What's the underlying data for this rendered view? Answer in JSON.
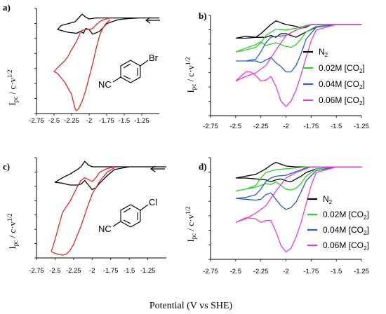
{
  "figure": {
    "xlabel": "Potential (V vs SHE)",
    "ylabel_main": "I",
    "ylabel_sub": "pc",
    "ylabel_rest": " / c·v",
    "ylabel_sup": "1/2"
  },
  "colors": {
    "n2": "#000000",
    "red": "#e0282a",
    "green": "#2ed12a",
    "blue": "#2a5cc8",
    "magenta": "#ee3bd8"
  },
  "molecules": {
    "a_substituent": "Br",
    "c_substituent": "Cl",
    "nitrile": "NC"
  },
  "chart_data": [
    {
      "panel": "a)",
      "type": "line",
      "x_ticks": [
        "-2.75",
        "-2.5",
        "-2.25",
        "-2",
        "-1.75",
        "-1.5",
        "-1.25"
      ],
      "xlim": [
        -2.75,
        -1.0
      ],
      "ylim": [
        -1.0,
        0.1
      ],
      "arrow": "scan direction toward negative potential",
      "series": [
        {
          "color_key": "n2",
          "x": [
            -1.0,
            -1.3,
            -1.5,
            -1.6,
            -1.75,
            -1.85,
            -1.95,
            -2.0,
            -2.05,
            -2.08,
            -2.12,
            -2.18,
            -2.3,
            -2.4,
            -2.45,
            -2.4,
            -2.3,
            -2.2,
            -2.15,
            -2.1,
            -2.05,
            -2.0,
            -1.9,
            -1.8,
            -1.6,
            -1.3,
            -1.0
          ],
          "y": [
            0.0,
            0.0,
            -0.01,
            -0.02,
            -0.06,
            -0.14,
            -0.17,
            -0.12,
            -0.11,
            -0.16,
            -0.14,
            -0.16,
            -0.15,
            -0.13,
            -0.12,
            -0.08,
            -0.06,
            -0.04,
            0.0,
            0.04,
            0.01,
            -0.01,
            0.0,
            0.0,
            0.0,
            0.0,
            0.0
          ]
        },
        {
          "color_key": "red",
          "x": [
            -1.7,
            -1.75,
            -1.8,
            -1.85,
            -1.9,
            -1.95,
            -2.0,
            -2.05,
            -2.1,
            -2.15,
            -2.18,
            -2.2,
            -2.25,
            -2.35,
            -2.45,
            -2.5,
            -2.45,
            -2.35,
            -2.3,
            -2.25,
            -2.2,
            -2.15,
            -2.12,
            -2.1,
            -2.05,
            -2.0,
            -1.95,
            -1.9,
            -1.85,
            -1.8,
            -1.7
          ],
          "y": [
            -0.02,
            -0.05,
            -0.1,
            -0.18,
            -0.32,
            -0.48,
            -0.62,
            -0.76,
            -0.87,
            -0.95,
            -0.97,
            -0.95,
            -0.8,
            -0.67,
            -0.58,
            -0.56,
            -0.52,
            -0.45,
            -0.4,
            -0.33,
            -0.27,
            -0.2,
            -0.14,
            -0.13,
            -0.12,
            -0.12,
            -0.11,
            -0.07,
            -0.04,
            -0.02,
            0.0
          ]
        }
      ]
    },
    {
      "panel": "b)",
      "type": "line",
      "x_ticks": [
        "-2.75",
        "-2.5",
        "-2.25",
        "-2",
        "-1.75",
        "-1.5",
        "-1.25"
      ],
      "xlim": [
        -2.75,
        -1.25
      ],
      "ylim": [
        -1.0,
        0.1
      ],
      "legend": [
        "N2",
        "0.02M [CO2]",
        "0.04M [CO2]",
        "0.06M [CO2]"
      ],
      "series": [
        {
          "name": "N2",
          "color_key": "n2",
          "x": [
            -2.5,
            -2.4,
            -2.3,
            -2.25,
            -2.2,
            -2.15,
            -2.1,
            -2.0,
            -1.9,
            -1.85,
            -1.8,
            -1.75,
            -1.7,
            -1.6,
            -1.5,
            -1.25,
            -1.5,
            -1.7,
            -1.8,
            -1.9,
            -2.0,
            -2.05,
            -2.1,
            -2.15,
            -2.2,
            -2.3,
            -2.4,
            -2.5
          ],
          "y": [
            -0.15,
            -0.15,
            -0.14,
            -0.1,
            -0.05,
            0.0,
            0.04,
            0.0,
            -0.02,
            -0.04,
            -0.03,
            0.0,
            0.0,
            0.0,
            0.0,
            0.0,
            0.0,
            -0.03,
            -0.08,
            -0.14,
            -0.1,
            -0.1,
            -0.14,
            -0.12,
            -0.14,
            -0.14,
            -0.13,
            -0.15
          ]
        },
        {
          "name": "0.02M [CO2]",
          "color_key": "green",
          "x": [
            -2.5,
            -2.4,
            -2.3,
            -2.25,
            -2.2,
            -2.1,
            -2.0,
            -1.9,
            -1.8,
            -1.75,
            -1.7,
            -1.6,
            -1.4,
            -1.25,
            -1.5,
            -1.7,
            -1.8,
            -1.85,
            -1.9,
            -1.95,
            -2.0,
            -2.1,
            -2.2,
            -2.25,
            -2.3,
            -2.4,
            -2.5
          ],
          "y": [
            -0.3,
            -0.28,
            -0.25,
            -0.2,
            -0.12,
            -0.05,
            -0.06,
            -0.04,
            -0.01,
            0.0,
            0.0,
            0.0,
            0.0,
            0.0,
            0.0,
            -0.02,
            -0.08,
            -0.16,
            -0.22,
            -0.25,
            -0.24,
            -0.2,
            -0.23,
            -0.19,
            -0.22,
            -0.26,
            -0.3
          ]
        },
        {
          "name": "0.04M [CO2]",
          "color_key": "blue",
          "x": [
            -2.5,
            -2.4,
            -2.3,
            -2.25,
            -2.2,
            -2.15,
            -2.1,
            -2.0,
            -1.9,
            -1.8,
            -1.75,
            -1.6,
            -1.4,
            -1.25,
            -1.5,
            -1.7,
            -1.8,
            -1.85,
            -1.9,
            -1.95,
            -2.0,
            -2.05,
            -2.1,
            -2.15,
            -2.2,
            -2.25,
            -2.3,
            -2.4,
            -2.5
          ],
          "y": [
            -0.4,
            -0.4,
            -0.38,
            -0.3,
            -0.2,
            -0.14,
            -0.13,
            -0.12,
            -0.06,
            -0.02,
            0.0,
            0.0,
            0.0,
            0.0,
            0.0,
            -0.03,
            -0.16,
            -0.32,
            -0.45,
            -0.52,
            -0.52,
            -0.46,
            -0.42,
            -0.36,
            -0.39,
            -0.42,
            -0.4,
            -0.4,
            -0.4
          ]
        },
        {
          "name": "0.06M [CO2]",
          "color_key": "magenta",
          "x": [
            -2.5,
            -2.4,
            -2.3,
            -2.2,
            -2.1,
            -2.0,
            -1.9,
            -1.8,
            -1.75,
            -1.6,
            -1.4,
            -1.25,
            -1.5,
            -1.7,
            -1.75,
            -1.8,
            -1.85,
            -1.9,
            -1.95,
            -2.0,
            -2.05,
            -2.1,
            -2.15,
            -2.2,
            -2.25,
            -2.3,
            -2.35,
            -2.4,
            -2.5
          ],
          "y": [
            -0.62,
            -0.57,
            -0.53,
            -0.45,
            -0.28,
            -0.12,
            -0.06,
            -0.02,
            0.0,
            0.0,
            0.0,
            0.0,
            0.0,
            -0.06,
            -0.18,
            -0.36,
            -0.55,
            -0.72,
            -0.84,
            -0.9,
            -0.84,
            -0.68,
            -0.57,
            -0.61,
            -0.62,
            -0.56,
            -0.52,
            -0.52,
            -0.62
          ]
        }
      ]
    },
    {
      "panel": "c)",
      "type": "line",
      "x_ticks": [
        "-2.75",
        "-2.5",
        "-2.25",
        "-2",
        "-1.75",
        "-1.5",
        "-1.25"
      ],
      "xlim": [
        -2.75,
        -1.0
      ],
      "ylim": [
        -1.0,
        0.1
      ],
      "arrow": "scan direction toward negative potential",
      "series": [
        {
          "color_key": "n2",
          "x": [
            -1.0,
            -1.3,
            -1.5,
            -1.7,
            -1.8,
            -1.9,
            -1.95,
            -2.0,
            -2.05,
            -2.1,
            -2.15,
            -2.2,
            -2.3,
            -2.4,
            -2.5,
            -2.4,
            -2.3,
            -2.2,
            -2.15,
            -2.1,
            -2.05,
            -2.0,
            -1.9,
            -1.8,
            -1.5,
            -1.0
          ],
          "y": [
            0.0,
            0.0,
            0.0,
            -0.03,
            -0.1,
            -0.18,
            -0.23,
            -0.25,
            -0.2,
            -0.15,
            -0.19,
            -0.2,
            -0.2,
            -0.18,
            -0.17,
            -0.12,
            -0.08,
            -0.03,
            0.0,
            0.06,
            0.02,
            0.0,
            0.0,
            0.0,
            0.0,
            0.0
          ]
        },
        {
          "color_key": "red",
          "x": [
            -1.7,
            -1.8,
            -1.9,
            -2.0,
            -2.05,
            -2.1,
            -2.15,
            -2.2,
            -2.25,
            -2.3,
            -2.35,
            -2.4,
            -2.5,
            -2.55,
            -2.5,
            -2.45,
            -2.4,
            -2.3,
            -2.25,
            -2.2,
            -2.15,
            -2.1,
            -2.05,
            -2.0,
            -1.95,
            -1.9,
            -1.8,
            -1.7
          ],
          "y": [
            -0.01,
            -0.06,
            -0.16,
            -0.3,
            -0.41,
            -0.53,
            -0.65,
            -0.75,
            -0.85,
            -0.92,
            -0.96,
            -0.97,
            -0.95,
            -0.93,
            -0.8,
            -0.65,
            -0.5,
            -0.38,
            -0.3,
            -0.22,
            -0.15,
            -0.12,
            -0.14,
            -0.16,
            -0.12,
            -0.06,
            -0.02,
            0.0
          ]
        }
      ]
    },
    {
      "panel": "d)",
      "type": "line",
      "x_ticks": [
        "-2.75",
        "-2.5",
        "-2.25",
        "-2",
        "-1.75",
        "-1.5",
        "-1.25"
      ],
      "xlim": [
        -2.75,
        -1.25
      ],
      "ylim": [
        -1.0,
        0.1
      ],
      "legend": [
        "N2",
        "0.02M [CO2]",
        "0.04M [CO2]",
        "0.06M [CO2]"
      ],
      "series": [
        {
          "name": "N2",
          "color_key": "n2",
          "x": [
            -2.5,
            -2.4,
            -2.3,
            -2.25,
            -2.2,
            -2.15,
            -2.1,
            -2.0,
            -1.9,
            -1.8,
            -1.75,
            -1.6,
            -1.4,
            -1.25,
            -1.5,
            -1.7,
            -1.8,
            -1.85,
            -1.9,
            -1.95,
            -2.0,
            -2.05,
            -2.1,
            -2.15,
            -2.2,
            -2.3,
            -2.4,
            -2.5
          ],
          "y": [
            -0.12,
            -0.1,
            -0.08,
            -0.05,
            -0.02,
            0.02,
            0.05,
            0.01,
            0.0,
            0.0,
            0.0,
            0.0,
            0.0,
            0.0,
            0.0,
            -0.02,
            -0.06,
            -0.1,
            -0.13,
            -0.16,
            -0.15,
            -0.13,
            -0.14,
            -0.16,
            -0.14,
            -0.13,
            -0.12,
            -0.12
          ]
        },
        {
          "name": "0.02M [CO2]",
          "color_key": "green",
          "x": [
            -2.5,
            -2.4,
            -2.3,
            -2.25,
            -2.2,
            -2.1,
            -2.0,
            -1.9,
            -1.8,
            -1.75,
            -1.6,
            -1.4,
            -1.25,
            -1.5,
            -1.7,
            -1.8,
            -1.85,
            -1.9,
            -1.95,
            -2.0,
            -2.05,
            -2.1,
            -2.15,
            -2.2,
            -2.25,
            -2.3,
            -2.4,
            -2.5
          ],
          "y": [
            -0.26,
            -0.24,
            -0.2,
            -0.12,
            -0.06,
            -0.03,
            -0.02,
            -0.01,
            0.0,
            0.0,
            0.0,
            0.0,
            0.0,
            0.0,
            -0.02,
            -0.1,
            -0.18,
            -0.23,
            -0.25,
            -0.24,
            -0.2,
            -0.16,
            -0.19,
            -0.18,
            -0.2,
            -0.22,
            -0.24,
            -0.26
          ]
        },
        {
          "name": "0.04M [CO2]",
          "color_key": "blue",
          "x": [
            -2.5,
            -2.4,
            -2.3,
            -2.25,
            -2.2,
            -2.15,
            -2.1,
            -2.0,
            -1.9,
            -1.8,
            -1.75,
            -1.6,
            -1.4,
            -1.25,
            -1.5,
            -1.7,
            -1.8,
            -1.85,
            -1.9,
            -1.95,
            -2.0,
            -2.05,
            -2.1,
            -2.15,
            -2.2,
            -2.25,
            -2.3,
            -2.4,
            -2.5
          ],
          "y": [
            -0.34,
            -0.33,
            -0.3,
            -0.24,
            -0.16,
            -0.12,
            -0.1,
            -0.09,
            -0.05,
            -0.01,
            0.0,
            0.0,
            0.0,
            0.0,
            0.0,
            -0.04,
            -0.15,
            -0.27,
            -0.38,
            -0.44,
            -0.46,
            -0.42,
            -0.35,
            -0.28,
            -0.3,
            -0.35,
            -0.36,
            -0.35,
            -0.34
          ]
        },
        {
          "name": "0.06M [CO2]",
          "color_key": "magenta",
          "x": [
            -2.5,
            -2.4,
            -2.3,
            -2.2,
            -2.1,
            -2.0,
            -1.9,
            -1.8,
            -1.75,
            -1.6,
            -1.4,
            -1.25,
            -1.5,
            -1.7,
            -1.75,
            -1.8,
            -1.85,
            -1.9,
            -1.95,
            -2.0,
            -2.05,
            -2.1,
            -2.15,
            -2.2,
            -2.25,
            -2.3,
            -2.4,
            -2.5
          ],
          "y": [
            -0.6,
            -0.56,
            -0.5,
            -0.42,
            -0.26,
            -0.12,
            -0.06,
            -0.02,
            0.0,
            0.0,
            0.0,
            0.0,
            0.0,
            -0.06,
            -0.2,
            -0.4,
            -0.6,
            -0.76,
            -0.88,
            -0.92,
            -0.85,
            -0.7,
            -0.58,
            -0.58,
            -0.6,
            -0.56,
            -0.55,
            -0.6
          ]
        }
      ]
    }
  ]
}
